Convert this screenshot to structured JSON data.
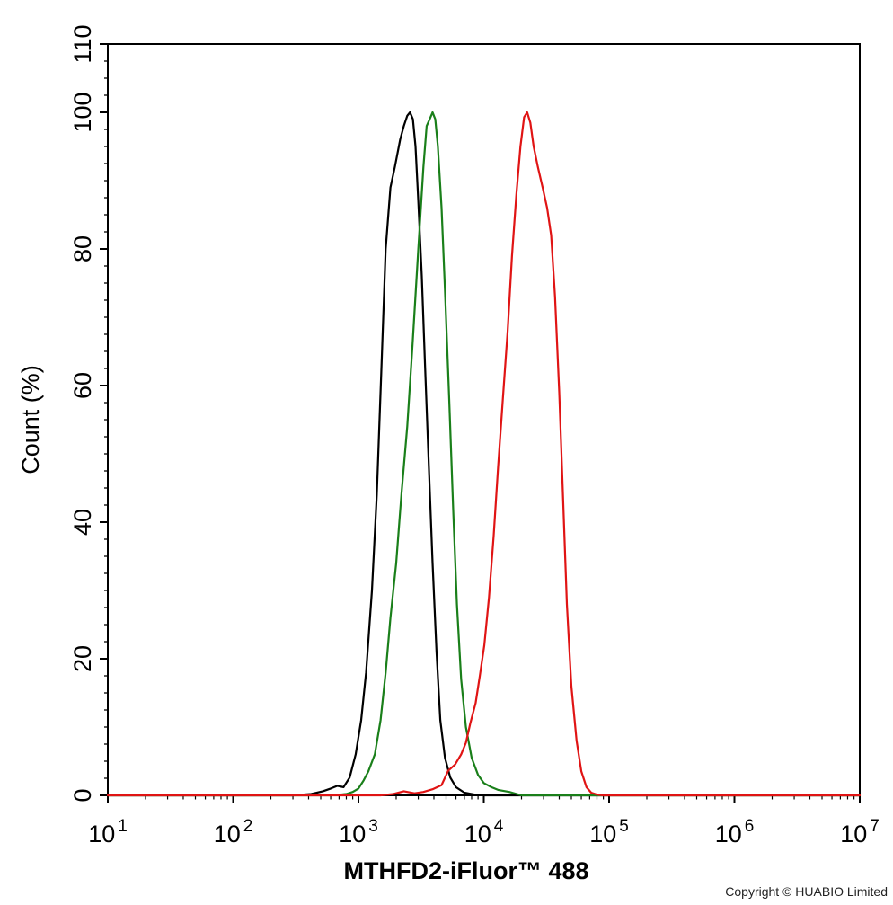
{
  "chart_data": {
    "type": "line",
    "xlabel": "MTHFD2-iFluor™ 488",
    "ylabel": "Count  (%)",
    "x_scale": "log",
    "xlim": [
      10,
      10000000
    ],
    "ylim": [
      0,
      110
    ],
    "x_tick_base": "10",
    "x_ticks": [
      {
        "value": 10,
        "exp": "1"
      },
      {
        "value": 100,
        "exp": "2"
      },
      {
        "value": 1000,
        "exp": "3"
      },
      {
        "value": 10000,
        "exp": "4"
      },
      {
        "value": 100000,
        "exp": "5"
      },
      {
        "value": 1000000,
        "exp": "6"
      },
      {
        "value": 10000000,
        "exp": "7"
      }
    ],
    "y_ticks": [
      "0",
      "20",
      "40",
      "60",
      "80",
      "100",
      "110"
    ],
    "grid": false,
    "legend": "none",
    "series": [
      {
        "color": "#000000",
        "x": [
          10,
          300,
          420,
          520,
          600,
          680,
          760,
          850,
          950,
          1050,
          1150,
          1280,
          1400,
          1520,
          1650,
          1800,
          1950,
          2150,
          2300,
          2450,
          2580,
          2720,
          2850,
          3000,
          3200,
          3400,
          3650,
          3900,
          4200,
          4500,
          4900,
          5400,
          6000,
          7000,
          8500,
          10000,
          10000000
        ],
        "y": [
          0,
          0,
          0.2,
          0.6,
          1.0,
          1.4,
          1.2,
          2.6,
          6,
          11,
          18,
          30,
          44,
          62,
          80,
          89,
          92,
          96,
          98,
          99.5,
          100,
          99,
          95,
          87,
          76,
          63,
          48,
          34,
          21,
          11,
          5.5,
          2.6,
          1.2,
          0.4,
          0.1,
          0,
          0
        ]
      },
      {
        "color": "#1a7f1a",
        "x": [
          10,
          600,
          700,
          800,
          900,
          1000,
          1100,
          1200,
          1350,
          1500,
          1650,
          1800,
          2000,
          2200,
          2450,
          2700,
          3000,
          3300,
          3500,
          3700,
          3900,
          4100,
          4300,
          4600,
          4900,
          5300,
          5700,
          6100,
          6600,
          7200,
          8000,
          9000,
          10000,
          11500,
          13000,
          16000,
          20000,
          10000000
        ],
        "y": [
          0,
          0,
          0.1,
          0.2,
          0.5,
          1.0,
          2.2,
          3.5,
          6,
          11,
          18,
          26,
          34,
          44,
          54,
          66,
          80,
          92,
          98,
          99,
          100,
          99,
          95,
          86,
          74,
          58,
          42,
          28,
          17,
          10,
          5.5,
          3,
          1.8,
          1.2,
          0.8,
          0.5,
          0,
          0
        ]
      },
      {
        "color": "#e01414",
        "x": [
          10,
          1500,
          1900,
          2300,
          2800,
          3300,
          3900,
          4600,
          5200,
          5900,
          6600,
          7200,
          7800,
          8600,
          9300,
          10100,
          11000,
          12000,
          13000,
          14200,
          15500,
          16800,
          18200,
          19600,
          21000,
          22200,
          23500,
          25000,
          27000,
          29500,
          32000,
          34500,
          37000,
          40000,
          43000,
          46000,
          50000,
          55000,
          60000,
          66000,
          72000,
          80000,
          90000,
          100000,
          10000000
        ],
        "y": [
          0,
          0,
          0.2,
          0.6,
          0.3,
          0.5,
          0.9,
          1.5,
          3.6,
          4.5,
          6,
          7.7,
          10.5,
          13.5,
          17.5,
          22,
          29,
          38,
          48,
          58,
          68,
          79,
          88,
          95,
          99.3,
          100,
          98.5,
          95,
          92,
          89,
          86,
          82,
          73,
          59,
          43,
          28,
          16,
          8,
          3.5,
          1.2,
          0.4,
          0.1,
          0,
          0,
          0
        ]
      }
    ]
  },
  "copyright": "Copyright © HUABIO Limited"
}
